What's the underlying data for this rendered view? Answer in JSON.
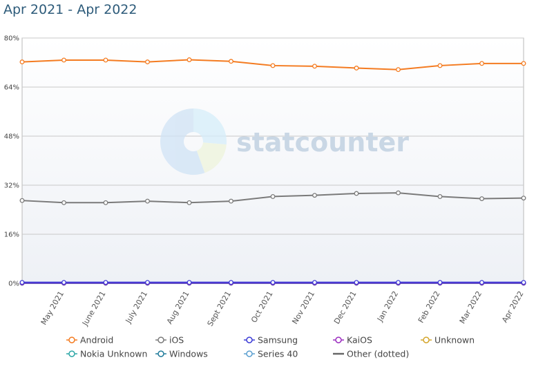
{
  "chart_data": {
    "type": "line",
    "title": "Apr 2021 - Apr 2022",
    "categories": [
      "Apr 2021",
      "May 2021",
      "June 2021",
      "July 2021",
      "Aug 2021",
      "Sept 2021",
      "Oct 2021",
      "Nov 2021",
      "Dec 2021",
      "Jan 2022",
      "Feb 2022",
      "Mar 2022",
      "Apr 2022"
    ],
    "y_ticks": [
      "0%",
      "16%",
      "32%",
      "48%",
      "64%",
      "80%"
    ],
    "ylim": [
      0,
      80
    ],
    "grid": true,
    "legend_position": "bottom",
    "series": [
      {
        "name": "Android",
        "color": "#f47b20",
        "values": [
          72.2,
          72.8,
          72.8,
          72.2,
          72.9,
          72.4,
          71.0,
          70.8,
          70.2,
          69.7,
          71.0,
          71.7,
          71.7
        ]
      },
      {
        "name": "iOS",
        "color": "#7a7a7a",
        "values": [
          27.0,
          26.3,
          26.3,
          26.8,
          26.3,
          26.8,
          28.3,
          28.7,
          29.3,
          29.5,
          28.3,
          27.6,
          27.8
        ]
      },
      {
        "name": "Samsung",
        "color": "#3a3ad6",
        "values": [
          0.3,
          0.3,
          0.3,
          0.3,
          0.3,
          0.3,
          0.3,
          0.3,
          0.3,
          0.3,
          0.3,
          0.3,
          0.3
        ]
      },
      {
        "name": "KaiOS",
        "color": "#9b2bbf",
        "values": [
          0.1,
          0.1,
          0.1,
          0.1,
          0.1,
          0.1,
          0.1,
          0.1,
          0.1,
          0.1,
          0.1,
          0.1,
          0.1
        ]
      },
      {
        "name": "Unknown",
        "color": "#d4a52a",
        "values": [
          0.1,
          0.1,
          0.1,
          0.1,
          0.1,
          0.1,
          0.1,
          0.1,
          0.1,
          0.1,
          0.1,
          0.1,
          0.1
        ]
      },
      {
        "name": "Nokia Unknown",
        "color": "#2aa6a6",
        "values": [
          0.05,
          0.05,
          0.05,
          0.05,
          0.05,
          0.05,
          0.05,
          0.05,
          0.05,
          0.05,
          0.05,
          0.05,
          0.05
        ]
      },
      {
        "name": "Windows",
        "color": "#1f7a9a",
        "values": [
          0.05,
          0.05,
          0.05,
          0.05,
          0.05,
          0.05,
          0.05,
          0.05,
          0.05,
          0.05,
          0.05,
          0.05,
          0.05
        ]
      },
      {
        "name": "Series 40",
        "color": "#5a9fd0",
        "values": [
          0.02,
          0.02,
          0.02,
          0.02,
          0.02,
          0.02,
          0.02,
          0.02,
          0.02,
          0.02,
          0.02,
          0.02,
          0.02
        ]
      },
      {
        "name": "Other (dotted)",
        "color": "#666666",
        "values": [
          0.1,
          0.1,
          0.1,
          0.1,
          0.1,
          0.1,
          0.1,
          0.1,
          0.1,
          0.1,
          0.1,
          0.1,
          0.1
        ]
      }
    ],
    "x_tick_labels": [
      "May 2021",
      "June 2021",
      "July 2021",
      "Aug 2021",
      "Sept 2021",
      "Oct 2021",
      "Nov 2021",
      "Dec 2021",
      "Jan 2022",
      "Feb 2022",
      "Mar 2022",
      "Apr 2022"
    ],
    "legend_rows": [
      [
        "Android",
        "iOS",
        "Samsung",
        "KaiOS",
        "Unknown"
      ],
      [
        "Nokia Unknown",
        "Windows",
        "Series 40",
        "Other (dotted)"
      ]
    ],
    "watermark": "statcounter"
  }
}
